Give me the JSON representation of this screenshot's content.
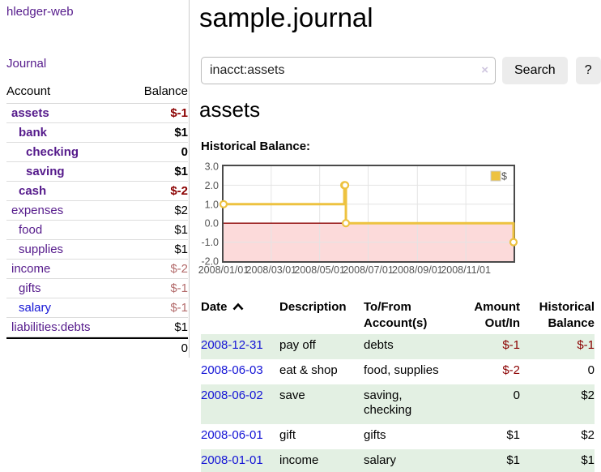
{
  "app": {
    "brand": "hledger-web",
    "nav_journal": "Journal"
  },
  "colors": {
    "link_purple": "#551a8b",
    "link_blue": "#1414d6",
    "negative": "#8b0000",
    "negative_muted": "#b36b6b",
    "row_shade_green": "#e3f0e3",
    "button_bg": "#ececec",
    "chart_line": "#edc240"
  },
  "sidebar": {
    "header": {
      "account": "Account",
      "balance": "Balance"
    },
    "accounts": [
      {
        "name": "assets",
        "level": 1,
        "bold": true,
        "link": "purple",
        "balance": "$-1",
        "balance_class": "neg"
      },
      {
        "name": "bank",
        "level": 2,
        "bold": true,
        "link": "purple",
        "balance": "$1",
        "balance_class": ""
      },
      {
        "name": "checking",
        "level": 3,
        "bold": true,
        "link": "purple",
        "balance": "0",
        "balance_class": ""
      },
      {
        "name": "saving",
        "level": 3,
        "bold": true,
        "link": "purple",
        "balance": "$1",
        "balance_class": ""
      },
      {
        "name": "cash",
        "level": 2,
        "bold": true,
        "link": "purple",
        "balance": "$-2",
        "balance_class": "neg"
      },
      {
        "name": "expenses",
        "level": 1,
        "bold": false,
        "link": "purple",
        "balance": "$2",
        "balance_class": ""
      },
      {
        "name": "food",
        "level": 2,
        "bold": false,
        "link": "purple",
        "balance": "$1",
        "balance_class": ""
      },
      {
        "name": "supplies",
        "level": 2,
        "bold": false,
        "link": "purple",
        "balance": "$1",
        "balance_class": ""
      },
      {
        "name": "income",
        "level": 1,
        "bold": false,
        "link": "purple",
        "balance": "$-2",
        "balance_class": "neg-muted"
      },
      {
        "name": "gifts",
        "level": 2,
        "bold": false,
        "link": "purple",
        "balance": "$-1",
        "balance_class": "neg-muted"
      },
      {
        "name": "salary",
        "level": 2,
        "bold": false,
        "link": "blue",
        "balance": "$-1",
        "balance_class": "neg-muted"
      },
      {
        "name": "liabilities:debts",
        "level": 1,
        "bold": false,
        "link": "purple",
        "balance": "$1",
        "balance_class": ""
      }
    ],
    "total": "0"
  },
  "main": {
    "title": "sample.journal",
    "search": {
      "value": "inacct:assets",
      "clear_icon": "×",
      "button": "Search",
      "help": "?"
    },
    "account_heading": "assets",
    "chart_label": "Historical Balance:"
  },
  "chart_data": {
    "type": "line",
    "title": "Historical Balance",
    "step": true,
    "series": [
      {
        "name": "$",
        "color": "#edc240",
        "points": [
          {
            "date": "2008/01/01",
            "x_day": 0,
            "y": 1
          },
          {
            "date": "2008/06/01",
            "x_day": 152,
            "y": 2
          },
          {
            "date": "2008/06/02",
            "x_day": 153,
            "y": 2
          },
          {
            "date": "2008/06/03",
            "x_day": 154,
            "y": 0
          },
          {
            "date": "2008/12/31",
            "x_day": 365,
            "y": -1
          }
        ]
      }
    ],
    "x_ticks": [
      {
        "label": "2008/01/01",
        "day": 0
      },
      {
        "label": "2008/03/01",
        "day": 60
      },
      {
        "label": "2008/05/01",
        "day": 121
      },
      {
        "label": "2008/07/01",
        "day": 182
      },
      {
        "label": "2008/09/01",
        "day": 244
      },
      {
        "label": "2008/11/01",
        "day": 305
      }
    ],
    "y_ticks": [
      "3.0",
      "2.0",
      "1.0",
      "0.0",
      "-1.0",
      "-2.0"
    ],
    "ylim": [
      -2,
      3
    ],
    "xlim_days": [
      0,
      365
    ],
    "grid": true,
    "legend": {
      "label": "$",
      "position": "top-right"
    },
    "negative_region_fill": "#fcdada",
    "zero_line_color": "#8b0000"
  },
  "register_table": {
    "headers": [
      "Date",
      "Description",
      "To/From\nAccount(s)",
      "Amount\nOut/In",
      "Historical\nBalance"
    ],
    "rows": [
      {
        "date": "2008-12-31",
        "description": "pay off",
        "accounts": "debts",
        "amount": "$-1",
        "balance": "$-1",
        "amount_negative": true,
        "balance_negative": true,
        "shaded": true
      },
      {
        "date": "2008-06-03",
        "description": "eat & shop",
        "accounts": "food, supplies",
        "amount": "$-2",
        "balance": "0",
        "amount_negative": true,
        "balance_negative": false,
        "shaded": false
      },
      {
        "date": "2008-06-02",
        "description": "save",
        "accounts": "saving, checking",
        "amount": "0",
        "balance": "$2",
        "amount_negative": false,
        "balance_negative": false,
        "shaded": true
      },
      {
        "date": "2008-06-01",
        "description": "gift",
        "accounts": "gifts",
        "amount": "$1",
        "balance": "$2",
        "amount_negative": false,
        "balance_negative": false,
        "shaded": false
      },
      {
        "date": "2008-01-01",
        "description": "income",
        "accounts": "salary",
        "amount": "$1",
        "balance": "$1",
        "amount_negative": false,
        "balance_negative": false,
        "shaded": true
      }
    ]
  }
}
